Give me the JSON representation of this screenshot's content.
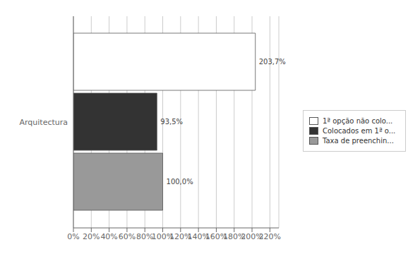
{
  "chart_data": {
    "type": "bar",
    "orientation": "horizontal",
    "categories": [
      "Arquitectura"
    ],
    "series": [
      {
        "name": "1ª opção não colo...",
        "color": "#ffffff",
        "values": [
          2.037
        ],
        "value_labels": [
          "203,7%"
        ]
      },
      {
        "name": "Colocados em 1ª o...",
        "color": "#333333",
        "values": [
          0.935
        ],
        "value_labels": [
          "93,5%"
        ]
      },
      {
        "name": "Taxa de preenchin...",
        "color": "#999999",
        "values": [
          1.0
        ],
        "value_labels": [
          "100,0%"
        ]
      }
    ],
    "xlim": [
      0,
      2.3
    ],
    "xticks": [
      {
        "value": 0.0,
        "label": "0%"
      },
      {
        "value": 0.2,
        "label": "20%"
      },
      {
        "value": 0.4,
        "label": "40%"
      },
      {
        "value": 0.6,
        "label": "60%"
      },
      {
        "value": 0.8,
        "label": "80%"
      },
      {
        "value": 1.0,
        "label": "100%"
      },
      {
        "value": 1.2,
        "label": "120%"
      },
      {
        "value": 1.4,
        "label": "140%"
      },
      {
        "value": 1.6,
        "label": "160%"
      },
      {
        "value": 1.8,
        "label": "180%"
      },
      {
        "value": 2.0,
        "label": "200%"
      },
      {
        "value": 2.2,
        "label": "220%"
      }
    ],
    "grid": true,
    "legend": "right",
    "data_labels": true
  }
}
